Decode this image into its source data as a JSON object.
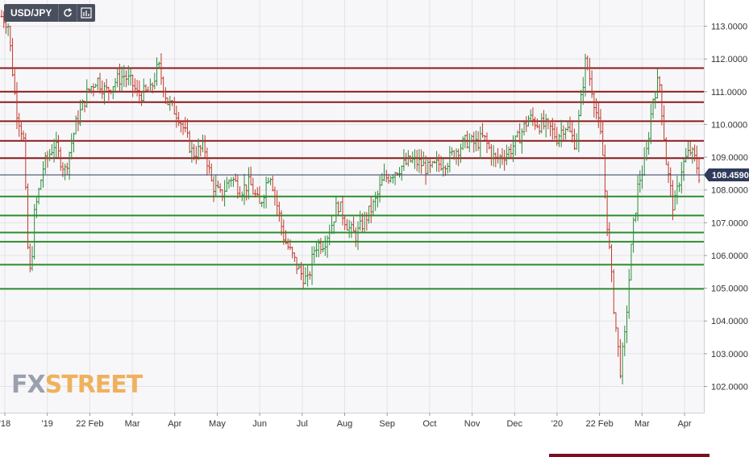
{
  "toolbar": {
    "symbol": "USD/JPY",
    "refresh_icon": "refresh-icon",
    "indicators_icon": "chart-indicators-icon"
  },
  "watermark": {
    "part1": "FX",
    "part2": "STREET"
  },
  "chart_data": {
    "type": "ohlc",
    "title": "USD/JPY",
    "ylim": [
      101.2,
      113.8
    ],
    "y_ticks": [
      "113.0000",
      "112.0000",
      "111.0000",
      "110.0000",
      "109.0000",
      "108.0000",
      "107.0000",
      "106.0000",
      "105.0000",
      "104.0000",
      "103.0000",
      "102.0000"
    ],
    "x_tick_labels": [
      "'18",
      "'19",
      "22 Feb",
      "Mar",
      "Apr",
      "May",
      "Jun",
      "Jul",
      "Aug",
      "Sep",
      "Oct",
      "Nov",
      "Dec",
      "'20",
      "22 Feb",
      "Mar",
      "Apr"
    ],
    "last_price": {
      "value": 108.459,
      "label": "108.4590"
    },
    "resistance_levels": [
      111.72,
      111.0,
      110.68,
      110.1,
      109.5,
      108.97
    ],
    "support_levels": [
      107.8,
      107.22,
      106.7,
      106.42,
      105.72,
      104.98
    ],
    "colors": {
      "up": "#2e8b3a",
      "down": "#c0392b",
      "resistance": "#8b1a1a",
      "support": "#2e8b2e",
      "price_line": "#2f3b5a",
      "price_tag": "#2f3b5a"
    },
    "grid": true,
    "path": [
      [
        0,
        113.3
      ],
      [
        0.7,
        113.1
      ],
      [
        1.6,
        110.5
      ],
      [
        2.4,
        109.6
      ],
      [
        2.9,
        106.2
      ],
      [
        3.2,
        105.3
      ],
      [
        3.6,
        107.2
      ],
      [
        4.6,
        108.7
      ],
      [
        5.8,
        109.4
      ],
      [
        7,
        108.6
      ],
      [
        8.2,
        110.0
      ],
      [
        9.5,
        111.0
      ],
      [
        10.5,
        111.4
      ],
      [
        11.5,
        111.0
      ],
      [
        12.5,
        111.3
      ],
      [
        13.5,
        111.5
      ],
      [
        14.5,
        111.2
      ],
      [
        15,
        110.9
      ],
      [
        16.4,
        111.0
      ],
      [
        17.3,
        111.8
      ],
      [
        18.3,
        110.7
      ],
      [
        19.5,
        110.3
      ],
      [
        21.1,
        109.1
      ],
      [
        22.4,
        109.3
      ],
      [
        23.2,
        108.2
      ],
      [
        24.2,
        107.8
      ],
      [
        25.3,
        108.4
      ],
      [
        26.4,
        108.0
      ],
      [
        27.4,
        108.2
      ],
      [
        28.5,
        107.5
      ],
      [
        29.6,
        108.6
      ],
      [
        31.2,
        106.5
      ],
      [
        32.9,
        105.5
      ],
      [
        33.8,
        105.2
      ],
      [
        34.6,
        106.3
      ],
      [
        35.6,
        106.4
      ],
      [
        36.5,
        107.0
      ],
      [
        37.1,
        107.6
      ],
      [
        38.4,
        106.8
      ],
      [
        39.1,
        106.6
      ],
      [
        40.1,
        107.1
      ],
      [
        41.2,
        107.6
      ],
      [
        42.1,
        108.3
      ],
      [
        43.5,
        108.6
      ],
      [
        45.2,
        108.9
      ],
      [
        46.3,
        108.8
      ],
      [
        47.2,
        108.6
      ],
      [
        48.3,
        108.8
      ],
      [
        49.3,
        108.9
      ],
      [
        50.1,
        109.2
      ],
      [
        51.4,
        109.5
      ],
      [
        52.3,
        109.4
      ],
      [
        53.2,
        109.6
      ],
      [
        54.5,
        108.9
      ],
      [
        56.1,
        109.2
      ],
      [
        57.1,
        109.6
      ],
      [
        58.2,
        110.2
      ],
      [
        59.4,
        110.0
      ],
      [
        60.5,
        109.9
      ],
      [
        61.3,
        109.6
      ],
      [
        62.2,
        110.0
      ],
      [
        63.4,
        109.4
      ],
      [
        64.5,
        112.0
      ],
      [
        65.1,
        111.2
      ],
      [
        66.3,
        109.4
      ],
      [
        66.8,
        107.2
      ],
      [
        67.6,
        104.4
      ],
      [
        68.3,
        102.5
      ],
      [
        68.8,
        103.5
      ],
      [
        69.6,
        106.5
      ],
      [
        70.3,
        108.2
      ],
      [
        71.1,
        108.9
      ],
      [
        71.9,
        110.8
      ],
      [
        72.6,
        111.4
      ],
      [
        73.4,
        108.8
      ],
      [
        74.2,
        107.4
      ],
      [
        75.1,
        108.7
      ],
      [
        76.0,
        109.2
      ],
      [
        76.6,
        108.9
      ],
      [
        77.0,
        108.46
      ]
    ]
  }
}
